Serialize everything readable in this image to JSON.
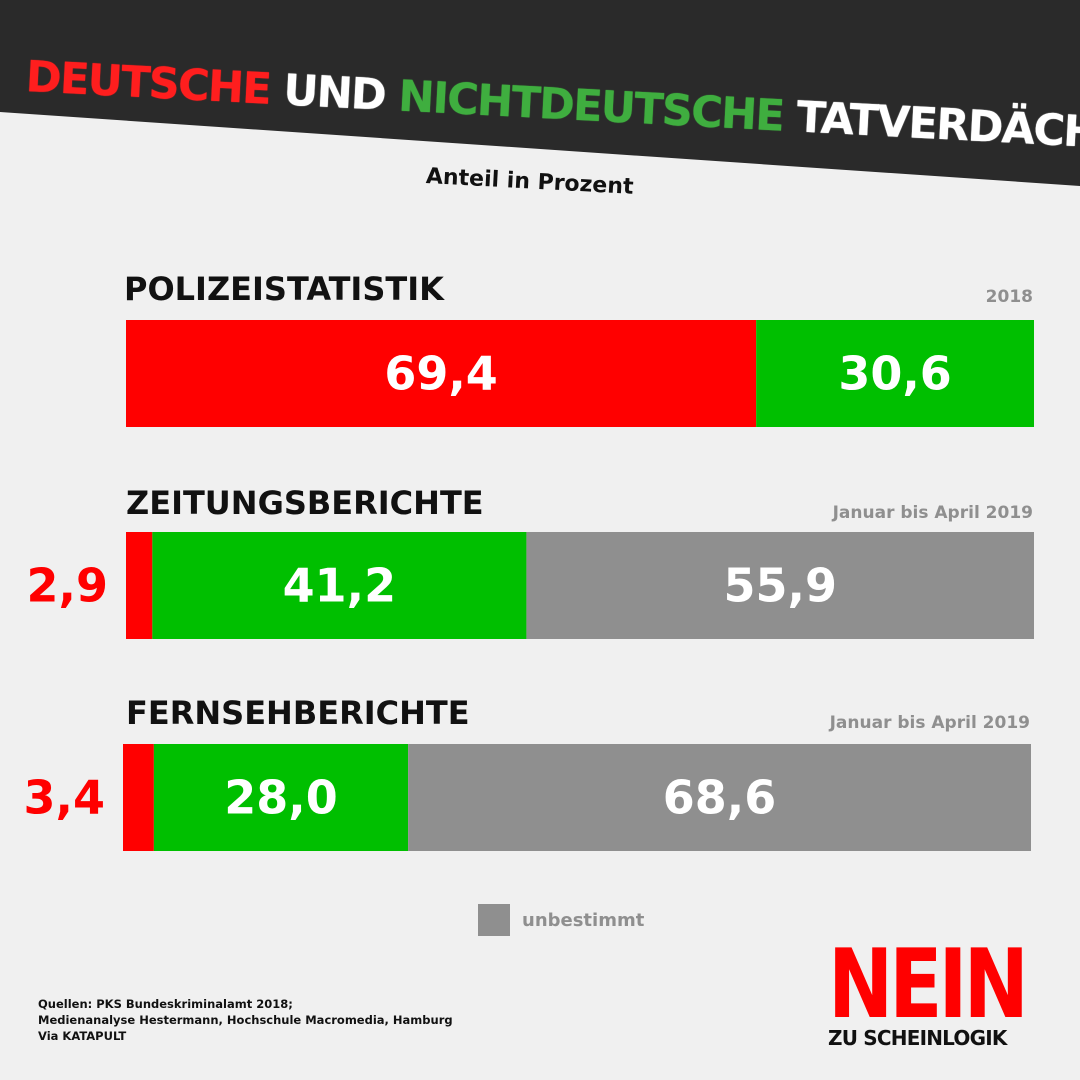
{
  "header": {
    "title_parts": [
      {
        "text": "DEUTSCHE",
        "color": "#ff1e1e"
      },
      {
        "text": "UND",
        "color": "#ffffff"
      },
      {
        "text": "NICHTDEUTSCHE",
        "color": "#3fae3f"
      },
      {
        "text": "TATVERDÄCHTIGE",
        "color": "#ffffff"
      }
    ],
    "subtitle": "Anteil in Prozent"
  },
  "colors": {
    "background": "#f0f0f0",
    "header_band": "#2a2a2a",
    "deutsche": "#ff0000",
    "nichtdeutsche": "#00bf00",
    "unbestimmt": "#8f8f8f",
    "heading": "#111111",
    "period": "#8f8f8f"
  },
  "chart_data": {
    "type": "bar",
    "stacked": true,
    "orientation": "horizontal",
    "unit": "Prozent",
    "categories": [
      "POLIZEISTATISTIK",
      "ZEITUNGSBERICHTE",
      "FERNSEHBERICHTE"
    ],
    "periods": [
      "2018",
      "Januar bis April 2019",
      "Januar bis April 2019"
    ],
    "series": [
      {
        "key": "deutsche",
        "values": [
          69.4,
          2.9,
          3.4
        ],
        "labels": [
          "69,4",
          "2,9",
          "3,4"
        ]
      },
      {
        "key": "nichtdeutsche",
        "values": [
          30.6,
          41.2,
          28.0
        ],
        "labels": [
          "30,6",
          "41,2",
          "28,0"
        ]
      },
      {
        "name": "unbestimmt",
        "key": "unbestimmt",
        "values": [
          0,
          55.9,
          68.6
        ],
        "labels": [
          "",
          "55,9",
          "68,6"
        ]
      }
    ],
    "legend": {
      "label": "unbestimmt",
      "position": "bottom-center"
    }
  },
  "sources": {
    "lines": [
      "Quellen: PKS Bundeskriminalamt 2018;",
      "Medienanalyse Hestermann, Hochschule Macromedia, Hamburg",
      "Via KATAPULT"
    ]
  },
  "logo": {
    "main": "NEIN",
    "sub": "ZU SCHEINLOGIK",
    "main_color": "#ff0000",
    "sub_color": "#111111"
  }
}
